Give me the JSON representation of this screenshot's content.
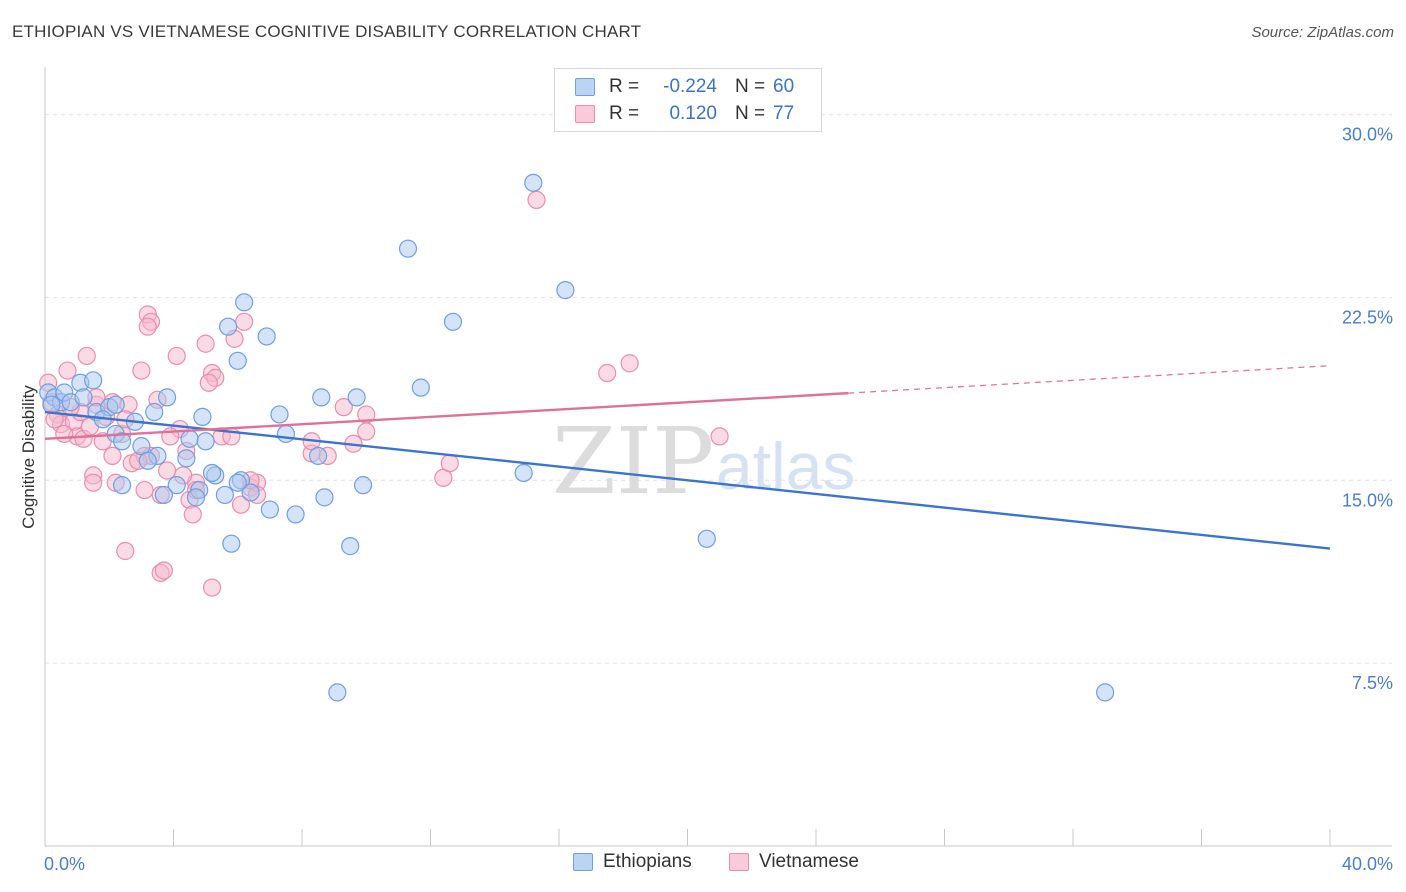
{
  "title": "ETHIOPIAN VS VIETNAMESE COGNITIVE DISABILITY CORRELATION CHART",
  "source": "Source: ZipAtlas.com",
  "watermark": {
    "zip": "ZIP",
    "atlas": "atlas"
  },
  "colors": {
    "ethiopians_fill": "#a9c8f0",
    "ethiopians_stroke": "#6f9fe0",
    "ethiopians_line": "#3b73cf",
    "vietnamese_fill": "#f6b8cc",
    "vietnamese_stroke": "#eb8daa",
    "vietnamese_line": "#e0709a",
    "tick_label": "#4a7ecb"
  },
  "stats": {
    "ethiopians": {
      "r_label": "R =",
      "r_value": "-0.224",
      "n_label": "N =",
      "n_value": "60"
    },
    "vietnamese": {
      "r_label": "R =",
      "r_value": "0.120",
      "n_label": "N =",
      "n_value": "77"
    }
  },
  "legend": {
    "ethiopians": "Ethiopians",
    "vietnamese": "Vietnamese"
  },
  "chart_data": {
    "type": "scatter",
    "title": "ETHIOPIAN VS VIETNAMESE COGNITIVE DISABILITY CORRELATION CHART",
    "xlabel": "",
    "ylabel": "Cognitive Disability",
    "xlim": [
      0,
      40
    ],
    "ylim": [
      0,
      31.5
    ],
    "x_tick_labels": [
      {
        "value": 0,
        "label": "0.0%"
      },
      {
        "value": 40,
        "label": "40.0%"
      }
    ],
    "y_tick_labels": [
      {
        "value": 7.5,
        "label": "7.5%"
      },
      {
        "value": 15,
        "label": "15.0%"
      },
      {
        "value": 22.5,
        "label": "22.5%"
      },
      {
        "value": 30,
        "label": "30.0%"
      }
    ],
    "grid": true,
    "series": [
      {
        "name": "Ethiopians",
        "trend": {
          "x": [
            0,
            40
          ],
          "y": [
            17.8,
            12.2
          ],
          "dashed_from_x": null
        },
        "points": [
          [
            0.1,
            18.6
          ],
          [
            0.3,
            18.4
          ],
          [
            0.5,
            18.2
          ],
          [
            0.6,
            18.6
          ],
          [
            0.8,
            18.2
          ],
          [
            1.1,
            19.0
          ],
          [
            1.5,
            19.1
          ],
          [
            1.2,
            18.4
          ],
          [
            1.6,
            17.8
          ],
          [
            2.0,
            18.0
          ],
          [
            1.8,
            17.5
          ],
          [
            2.2,
            16.9
          ],
          [
            2.8,
            17.4
          ],
          [
            3.4,
            17.8
          ],
          [
            3.8,
            18.4
          ],
          [
            4.9,
            17.6
          ],
          [
            3.0,
            16.4
          ],
          [
            3.5,
            16.0
          ],
          [
            4.5,
            16.7
          ],
          [
            4.4,
            15.9
          ],
          [
            3.2,
            15.8
          ],
          [
            2.4,
            16.6
          ],
          [
            2.4,
            14.8
          ],
          [
            3.7,
            14.4
          ],
          [
            4.1,
            14.8
          ],
          [
            4.8,
            14.6
          ],
          [
            5.3,
            15.2
          ],
          [
            6.1,
            15.0
          ],
          [
            6.4,
            14.5
          ],
          [
            5.0,
            16.6
          ],
          [
            5.6,
            14.4
          ],
          [
            7.3,
            17.7
          ],
          [
            7.5,
            16.9
          ],
          [
            8.5,
            16.0
          ],
          [
            8.6,
            18.4
          ],
          [
            9.7,
            18.4
          ],
          [
            11.7,
            18.8
          ],
          [
            6.0,
            19.9
          ],
          [
            5.8,
            12.4
          ],
          [
            7.0,
            13.8
          ],
          [
            7.8,
            13.6
          ],
          [
            8.7,
            14.3
          ],
          [
            9.5,
            12.3
          ],
          [
            9.9,
            14.8
          ],
          [
            5.7,
            21.3
          ],
          [
            6.2,
            22.3
          ],
          [
            6.9,
            20.9
          ],
          [
            11.3,
            24.5
          ],
          [
            12.7,
            21.5
          ],
          [
            15.2,
            27.2
          ],
          [
            16.2,
            22.8
          ],
          [
            14.9,
            15.3
          ],
          [
            20.6,
            12.6
          ],
          [
            9.1,
            6.3
          ],
          [
            33.0,
            6.3
          ],
          [
            0.2,
            18.1
          ],
          [
            2.2,
            18.1
          ],
          [
            4.7,
            14.3
          ],
          [
            5.2,
            15.3
          ],
          [
            6.0,
            14.9
          ]
        ]
      },
      {
        "name": "Vietnamese",
        "trend": {
          "x": [
            0,
            40
          ],
          "y": [
            16.7,
            19.7
          ],
          "dashed_from_x": 25.0
        },
        "points": [
          [
            0.1,
            19.0
          ],
          [
            0.2,
            18.2
          ],
          [
            0.4,
            17.7
          ],
          [
            0.5,
            17.3
          ],
          [
            0.7,
            19.5
          ],
          [
            0.9,
            17.4
          ],
          [
            1.0,
            16.8
          ],
          [
            1.2,
            16.7
          ],
          [
            1.3,
            20.1
          ],
          [
            1.6,
            18.1
          ],
          [
            1.9,
            17.6
          ],
          [
            2.1,
            18.2
          ],
          [
            2.4,
            16.9
          ],
          [
            2.6,
            18.1
          ],
          [
            2.7,
            15.7
          ],
          [
            3.0,
            19.5
          ],
          [
            3.1,
            16.0
          ],
          [
            3.3,
            16.0
          ],
          [
            3.5,
            18.3
          ],
          [
            3.1,
            14.6
          ],
          [
            2.2,
            14.9
          ],
          [
            1.5,
            15.2
          ],
          [
            1.5,
            14.9
          ],
          [
            3.6,
            14.4
          ],
          [
            3.8,
            15.4
          ],
          [
            3.2,
            21.8
          ],
          [
            3.3,
            21.5
          ],
          [
            3.2,
            21.3
          ],
          [
            4.1,
            20.1
          ],
          [
            4.2,
            17.1
          ],
          [
            4.4,
            16.2
          ],
          [
            4.7,
            14.9
          ],
          [
            4.5,
            14.2
          ],
          [
            4.6,
            13.6
          ],
          [
            5.0,
            20.6
          ],
          [
            5.2,
            19.4
          ],
          [
            5.3,
            19.2
          ],
          [
            5.1,
            19.0
          ],
          [
            5.5,
            16.8
          ],
          [
            5.8,
            16.8
          ],
          [
            5.9,
            20.8
          ],
          [
            6.2,
            21.5
          ],
          [
            6.1,
            14.0
          ],
          [
            6.4,
            14.7
          ],
          [
            6.6,
            14.9
          ],
          [
            6.4,
            15.0
          ],
          [
            8.3,
            16.1
          ],
          [
            8.3,
            16.6
          ],
          [
            8.8,
            16.0
          ],
          [
            9.3,
            18.0
          ],
          [
            9.6,
            16.5
          ],
          [
            10.0,
            17.7
          ],
          [
            10.0,
            17.0
          ],
          [
            12.4,
            15.1
          ],
          [
            12.6,
            15.7
          ],
          [
            15.3,
            26.5
          ],
          [
            17.5,
            19.4
          ],
          [
            18.2,
            19.8
          ],
          [
            21.0,
            16.8
          ],
          [
            2.5,
            12.1
          ],
          [
            3.6,
            11.2
          ],
          [
            5.2,
            10.6
          ],
          [
            3.7,
            11.3
          ],
          [
            0.6,
            16.9
          ],
          [
            1.1,
            17.8
          ],
          [
            2.5,
            17.5
          ],
          [
            3.9,
            16.8
          ],
          [
            1.8,
            16.6
          ],
          [
            0.8,
            18.0
          ],
          [
            1.4,
            17.2
          ],
          [
            2.9,
            15.8
          ],
          [
            4.7,
            14.6
          ],
          [
            4.3,
            15.2
          ],
          [
            6.6,
            14.4
          ],
          [
            2.1,
            16.0
          ],
          [
            0.3,
            17.5
          ],
          [
            1.6,
            18.4
          ]
        ]
      }
    ]
  }
}
